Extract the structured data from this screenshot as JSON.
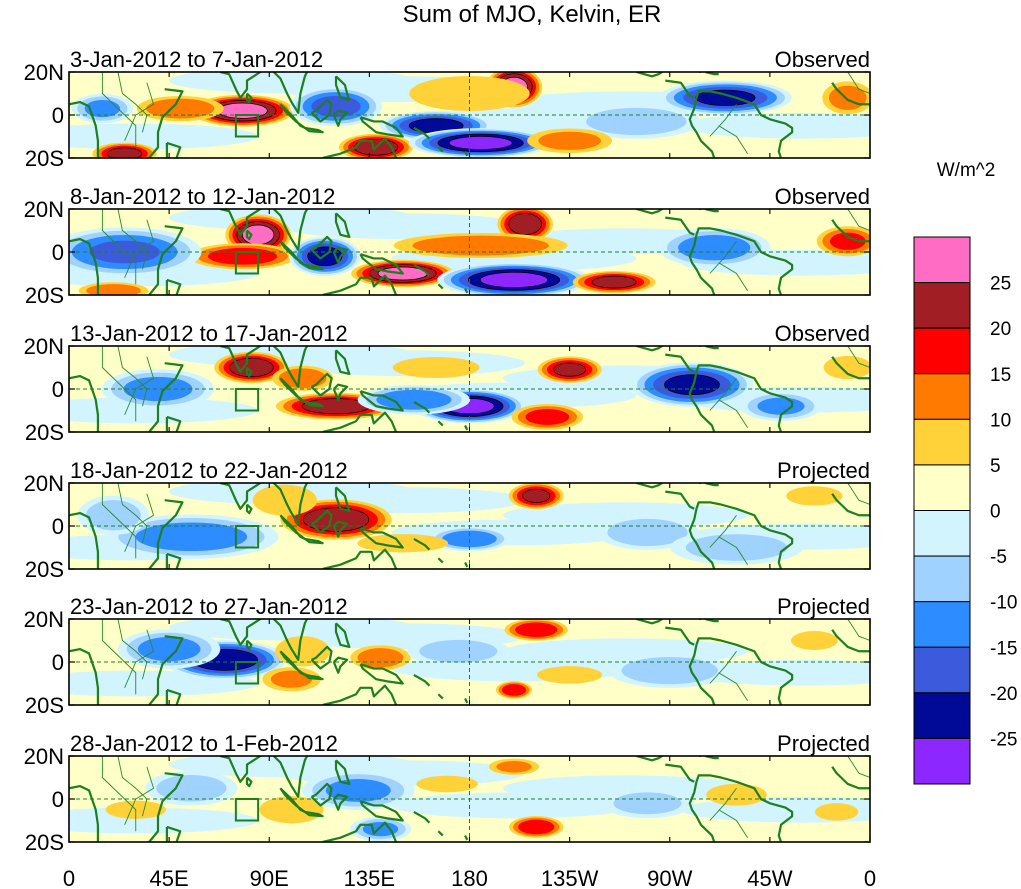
{
  "chart_data": {
    "type": "heatmap",
    "title": "Sum of MJO, Kelvin, ER",
    "units_label": "W/m^2",
    "xlabel": "",
    "ylabel": "",
    "x_range": [
      0,
      360
    ],
    "y_range": [
      -20,
      20
    ],
    "x_tick_labels": [
      "0",
      "45E",
      "90E",
      "135E",
      "180",
      "135W",
      "90W",
      "45W",
      "0"
    ],
    "y_tick_labels": [
      "20N",
      "0",
      "20S"
    ],
    "colorbar": {
      "tick_labels": [
        "25",
        "20",
        "15",
        "10",
        "5",
        "0",
        "-5",
        "-10",
        "-15",
        "-20",
        "-25"
      ],
      "colors": [
        "#ff6cc4",
        "#a01e24",
        "#ff0000",
        "#ff7a00",
        "#ffd23a",
        "#ffffc8",
        "#d2f4ff",
        "#a0d2ff",
        "#2d8cff",
        "#3c5adc",
        "#000a96",
        "#8c28ff"
      ]
    },
    "panels": [
      {
        "date_range": "3-Jan-2012 to 7-Jan-2012",
        "status": "Observed",
        "blobs": [
          {
            "lon": 78,
            "lat": 2,
            "value": 27,
            "rlon": 22,
            "rlat": 7
          },
          {
            "lon": 50,
            "lat": 3,
            "value": 14,
            "rlon": 20,
            "rlat": 6
          },
          {
            "lon": 200,
            "lat": 13,
            "value": 27,
            "rlon": 12,
            "rlat": 9
          },
          {
            "lon": 180,
            "lat": 10,
            "value": 9,
            "rlon": 30,
            "rlat": 9
          },
          {
            "lon": 138,
            "lat": -15,
            "value": 24,
            "rlon": 16,
            "rlat": 6
          },
          {
            "lon": 25,
            "lat": -18,
            "value": 22,
            "rlon": 14,
            "rlat": 5
          },
          {
            "lon": 165,
            "lat": -5,
            "value": -22,
            "rlon": 22,
            "rlat": 6
          },
          {
            "lon": 185,
            "lat": -13,
            "value": -27,
            "rlon": 28,
            "rlat": 6
          },
          {
            "lon": 120,
            "lat": 4,
            "value": -17,
            "rlon": 18,
            "rlat": 8
          },
          {
            "lon": 295,
            "lat": 8,
            "value": -21,
            "rlon": 26,
            "rlat": 7
          },
          {
            "lon": 255,
            "lat": -3,
            "value": -9,
            "rlon": 25,
            "rlat": 7
          },
          {
            "lon": 15,
            "lat": 3,
            "value": -11,
            "rlon": 12,
            "rlat": 6
          },
          {
            "lon": 225,
            "lat": -12,
            "value": 12,
            "rlon": 20,
            "rlat": 6
          },
          {
            "lon": 350,
            "lat": 8,
            "value": 12,
            "rlon": 12,
            "rlat": 8
          }
        ]
      },
      {
        "date_range": "8-Jan-2012 to 12-Jan-2012",
        "status": "Observed",
        "blobs": [
          {
            "lon": 85,
            "lat": 8,
            "value": 27,
            "rlon": 14,
            "rlat": 9
          },
          {
            "lon": 78,
            "lat": -2,
            "value": 18,
            "rlon": 24,
            "rlat": 6
          },
          {
            "lon": 205,
            "lat": 13,
            "value": 24,
            "rlon": 12,
            "rlat": 8
          },
          {
            "lon": 185,
            "lat": 3,
            "value": 14,
            "rlon": 40,
            "rlat": 6
          },
          {
            "lon": 150,
            "lat": -10,
            "value": 27,
            "rlon": 22,
            "rlat": 6
          },
          {
            "lon": 200,
            "lat": -13,
            "value": -27,
            "rlon": 30,
            "rlat": 7
          },
          {
            "lon": 115,
            "lat": -2,
            "value": -22,
            "rlon": 14,
            "rlat": 8
          },
          {
            "lon": 25,
            "lat": 0,
            "value": -15,
            "rlon": 30,
            "rlat": 10
          },
          {
            "lon": 245,
            "lat": -14,
            "value": 22,
            "rlon": 18,
            "rlat": 5
          },
          {
            "lon": 290,
            "lat": 2,
            "value": -13,
            "rlon": 22,
            "rlat": 8
          },
          {
            "lon": 350,
            "lat": 5,
            "value": 16,
            "rlon": 14,
            "rlat": 7
          },
          {
            "lon": 20,
            "lat": -18,
            "value": 14,
            "rlon": 16,
            "rlat": 4
          }
        ]
      },
      {
        "date_range": "13-Jan-2012 to 17-Jan-2012",
        "status": "Observed",
        "blobs": [
          {
            "lon": 82,
            "lat": 10,
            "value": 24,
            "rlon": 16,
            "rlat": 7
          },
          {
            "lon": 120,
            "lat": -8,
            "value": 23,
            "rlon": 26,
            "rlat": 6
          },
          {
            "lon": 180,
            "lat": -8,
            "value": -27,
            "rlon": 22,
            "rlat": 7
          },
          {
            "lon": 155,
            "lat": -5,
            "value": -14,
            "rlon": 22,
            "rlat": 6
          },
          {
            "lon": 225,
            "lat": 9,
            "value": 21,
            "rlon": 14,
            "rlat": 6
          },
          {
            "lon": 215,
            "lat": -13,
            "value": 17,
            "rlon": 16,
            "rlat": 6
          },
          {
            "lon": 280,
            "lat": 2,
            "value": -21,
            "rlon": 24,
            "rlat": 9
          },
          {
            "lon": 40,
            "lat": 0,
            "value": -12,
            "rlon": 22,
            "rlat": 8
          },
          {
            "lon": 105,
            "lat": 5,
            "value": 14,
            "rlon": 14,
            "rlat": 6
          },
          {
            "lon": 320,
            "lat": -8,
            "value": -11,
            "rlon": 16,
            "rlat": 6
          },
          {
            "lon": 350,
            "lat": 10,
            "value": 9,
            "rlon": 12,
            "rlat": 6
          },
          {
            "lon": 165,
            "lat": 10,
            "value": 6,
            "rlon": 24,
            "rlat": 6
          }
        ]
      },
      {
        "date_range": "18-Jan-2012 to 22-Jan-2012",
        "status": "Projected",
        "blobs": [
          {
            "lon": 120,
            "lat": 3,
            "value": 24,
            "rlon": 24,
            "rlat": 9
          },
          {
            "lon": 97,
            "lat": 12,
            "value": 9,
            "rlon": 16,
            "rlat": 8
          },
          {
            "lon": 210,
            "lat": 14,
            "value": 21,
            "rlon": 12,
            "rlat": 6
          },
          {
            "lon": 55,
            "lat": -5,
            "value": -13,
            "rlon": 34,
            "rlat": 9
          },
          {
            "lon": 180,
            "lat": -6,
            "value": -14,
            "rlon": 16,
            "rlat": 5
          },
          {
            "lon": 260,
            "lat": -3,
            "value": -9,
            "rlon": 20,
            "rlat": 7
          },
          {
            "lon": 300,
            "lat": -10,
            "value": -8,
            "rlon": 26,
            "rlat": 7
          },
          {
            "lon": 150,
            "lat": -8,
            "value": 7,
            "rlon": 24,
            "rlat": 5
          },
          {
            "lon": 335,
            "lat": 14,
            "value": 9,
            "rlon": 14,
            "rlat": 5
          },
          {
            "lon": 20,
            "lat": 5,
            "value": -8,
            "rlon": 14,
            "rlat": 8
          }
        ]
      },
      {
        "date_range": "23-Jan-2012 to 27-Jan-2012",
        "status": "Projected",
        "blobs": [
          {
            "lon": 70,
            "lat": 1,
            "value": -24,
            "rlon": 24,
            "rlat": 8
          },
          {
            "lon": 45,
            "lat": 6,
            "value": -12,
            "rlon": 20,
            "rlat": 8
          },
          {
            "lon": 105,
            "lat": 5,
            "value": 8,
            "rlon": 14,
            "rlat": 8
          },
          {
            "lon": 140,
            "lat": 2,
            "value": 13,
            "rlon": 14,
            "rlat": 6
          },
          {
            "lon": 100,
            "lat": -8,
            "value": 11,
            "rlon": 14,
            "rlat": 6
          },
          {
            "lon": 210,
            "lat": 15,
            "value": 19,
            "rlon": 14,
            "rlat": 5
          },
          {
            "lon": 200,
            "lat": -13,
            "value": 19,
            "rlon": 8,
            "rlat": 4
          },
          {
            "lon": 175,
            "lat": 5,
            "value": -8,
            "rlon": 20,
            "rlat": 6
          },
          {
            "lon": 270,
            "lat": -4,
            "value": -9,
            "rlon": 24,
            "rlat": 7
          },
          {
            "lon": 225,
            "lat": -6,
            "value": 6,
            "rlon": 18,
            "rlat": 5
          },
          {
            "lon": 335,
            "lat": 10,
            "value": 8,
            "rlon": 12,
            "rlat": 5
          }
        ]
      },
      {
        "date_range": "28-Jan-2012 to 1-Feb-2012",
        "status": "Projected",
        "blobs": [
          {
            "lon": 210,
            "lat": -13,
            "value": 19,
            "rlon": 12,
            "rlat": 5
          },
          {
            "lon": 200,
            "lat": 15,
            "value": 11,
            "rlon": 12,
            "rlat": 4
          },
          {
            "lon": 130,
            "lat": 4,
            "value": -11,
            "rlon": 22,
            "rlat": 8
          },
          {
            "lon": 55,
            "lat": 5,
            "value": -8,
            "rlon": 18,
            "rlat": 7
          },
          {
            "lon": 140,
            "lat": -14,
            "value": -11,
            "rlon": 12,
            "rlat": 5
          },
          {
            "lon": 100,
            "lat": -5,
            "value": 9,
            "rlon": 16,
            "rlat": 7
          },
          {
            "lon": 30,
            "lat": -5,
            "value": 7,
            "rlon": 16,
            "rlat": 5
          },
          {
            "lon": 300,
            "lat": 2,
            "value": 7,
            "rlon": 16,
            "rlat": 6
          },
          {
            "lon": 260,
            "lat": -2,
            "value": -7,
            "rlon": 18,
            "rlat": 6
          },
          {
            "lon": 170,
            "lat": 7,
            "value": 5,
            "rlon": 18,
            "rlat": 5
          },
          {
            "lon": 345,
            "lat": -6,
            "value": 6,
            "rlon": 12,
            "rlat": 5
          }
        ]
      }
    ]
  }
}
